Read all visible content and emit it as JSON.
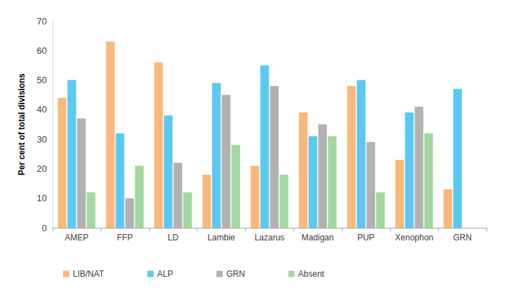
{
  "chart_data": {
    "type": "bar",
    "y_label": "Per cent of total divisions",
    "categories": [
      "AMEP",
      "FFP",
      "LD",
      "Lambie",
      "Lazarus",
      "Madigan",
      "PUP",
      "Xenophon",
      "GRN"
    ],
    "series": [
      {
        "name": "LIB/NAT",
        "color": "#F9B97C",
        "values": [
          44,
          63,
          56,
          18,
          21,
          39,
          48,
          23,
          13
        ]
      },
      {
        "name": "ALP",
        "color": "#5CC9F2",
        "values": [
          50,
          32,
          38,
          49,
          55,
          31,
          50,
          39,
          47
        ]
      },
      {
        "name": "GRN",
        "color": "#B2B2B2",
        "values": [
          37,
          10,
          22,
          45,
          48,
          35,
          29,
          41,
          null
        ]
      },
      {
        "name": "Absent",
        "color": "#A2D99F",
        "values": [
          12,
          21,
          12,
          28,
          18,
          31,
          12,
          32,
          null
        ]
      }
    ],
    "ylim": [
      0,
      70
    ],
    "yticks": [
      0,
      10,
      20,
      30,
      40,
      50,
      60,
      70
    ],
    "grid": false,
    "legend": "bottom"
  }
}
